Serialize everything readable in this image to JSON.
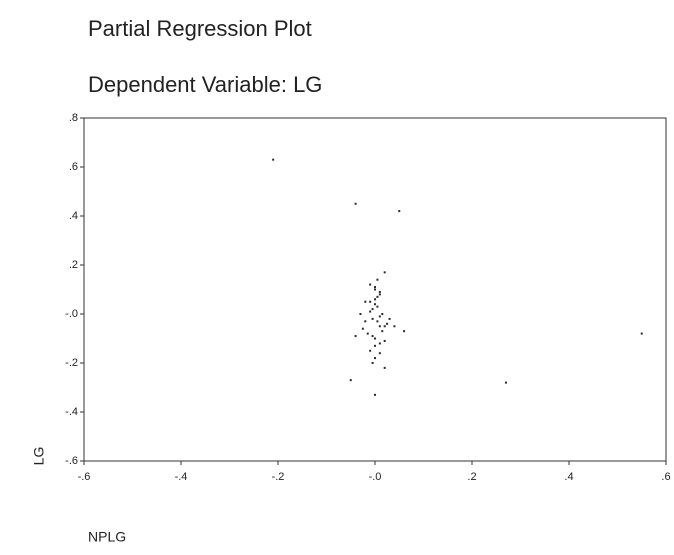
{
  "chart_data": {
    "type": "scatter",
    "title": "Partial Regression Plot",
    "subtitle": "Dependent Variable: LG",
    "xlabel": "NPLG",
    "ylabel": "LG",
    "color": "#2a2a2a",
    "x": [
      -0.21,
      -0.04,
      0.05,
      0.55,
      0.27,
      -0.05,
      0.02,
      0.0,
      -0.01,
      0.0,
      0.01,
      -0.02,
      0.005,
      0.015,
      -0.005,
      0.02,
      -0.015,
      0.0,
      0.01,
      -0.01,
      0.0,
      0.005,
      -0.005,
      0.025,
      -0.025,
      0.01,
      0.0,
      -0.01,
      0.015,
      -0.02,
      0.0,
      0.01,
      -0.005,
      0.005,
      0.03,
      -0.03,
      0.02,
      0.0,
      -0.01,
      0.01,
      0.04,
      0.06,
      -0.04,
      0.005,
      0.0,
      -0.005,
      0.01,
      0.02
    ],
    "values": [
      0.63,
      0.45,
      0.42,
      -0.08,
      -0.28,
      -0.27,
      0.17,
      -0.33,
      0.12,
      0.1,
      0.08,
      0.05,
      0.03,
      0.0,
      -0.02,
      -0.05,
      -0.08,
      -0.1,
      -0.12,
      -0.15,
      0.06,
      -0.03,
      0.02,
      -0.04,
      -0.06,
      -0.01,
      0.04,
      0.01,
      -0.07,
      -0.03,
      -0.13,
      0.09,
      -0.09,
      0.07,
      -0.02,
      0.0,
      -0.11,
      0.11,
      0.05,
      -0.05,
      -0.05,
      -0.07,
      -0.09,
      0.14,
      -0.18,
      -0.2,
      -0.16,
      -0.22
    ],
    "xlim": [
      -0.6,
      0.6
    ],
    "ylim": [
      -0.6,
      0.8
    ],
    "xticks": [
      {
        "value": -0.6,
        "label": "-.6"
      },
      {
        "value": -0.4,
        "label": "-.4"
      },
      {
        "value": -0.2,
        "label": "-.2"
      },
      {
        "value": 0,
        "label": "-.0"
      },
      {
        "value": 0.2,
        "label": ".2"
      },
      {
        "value": 0.4,
        "label": ".4"
      },
      {
        "value": 0.6,
        "label": ".6"
      }
    ],
    "yticks": [
      {
        "value": -0.6,
        "label": "-.6"
      },
      {
        "value": -0.4,
        "label": "-.4"
      },
      {
        "value": -0.2,
        "label": "-.2"
      },
      {
        "value": 0,
        "label": "-.0"
      },
      {
        "value": 0.2,
        "label": ".2"
      },
      {
        "value": 0.4,
        "label": ".4"
      },
      {
        "value": 0.6,
        "label": ".6"
      },
      {
        "value": 0.8,
        "label": ".8"
      }
    ]
  }
}
